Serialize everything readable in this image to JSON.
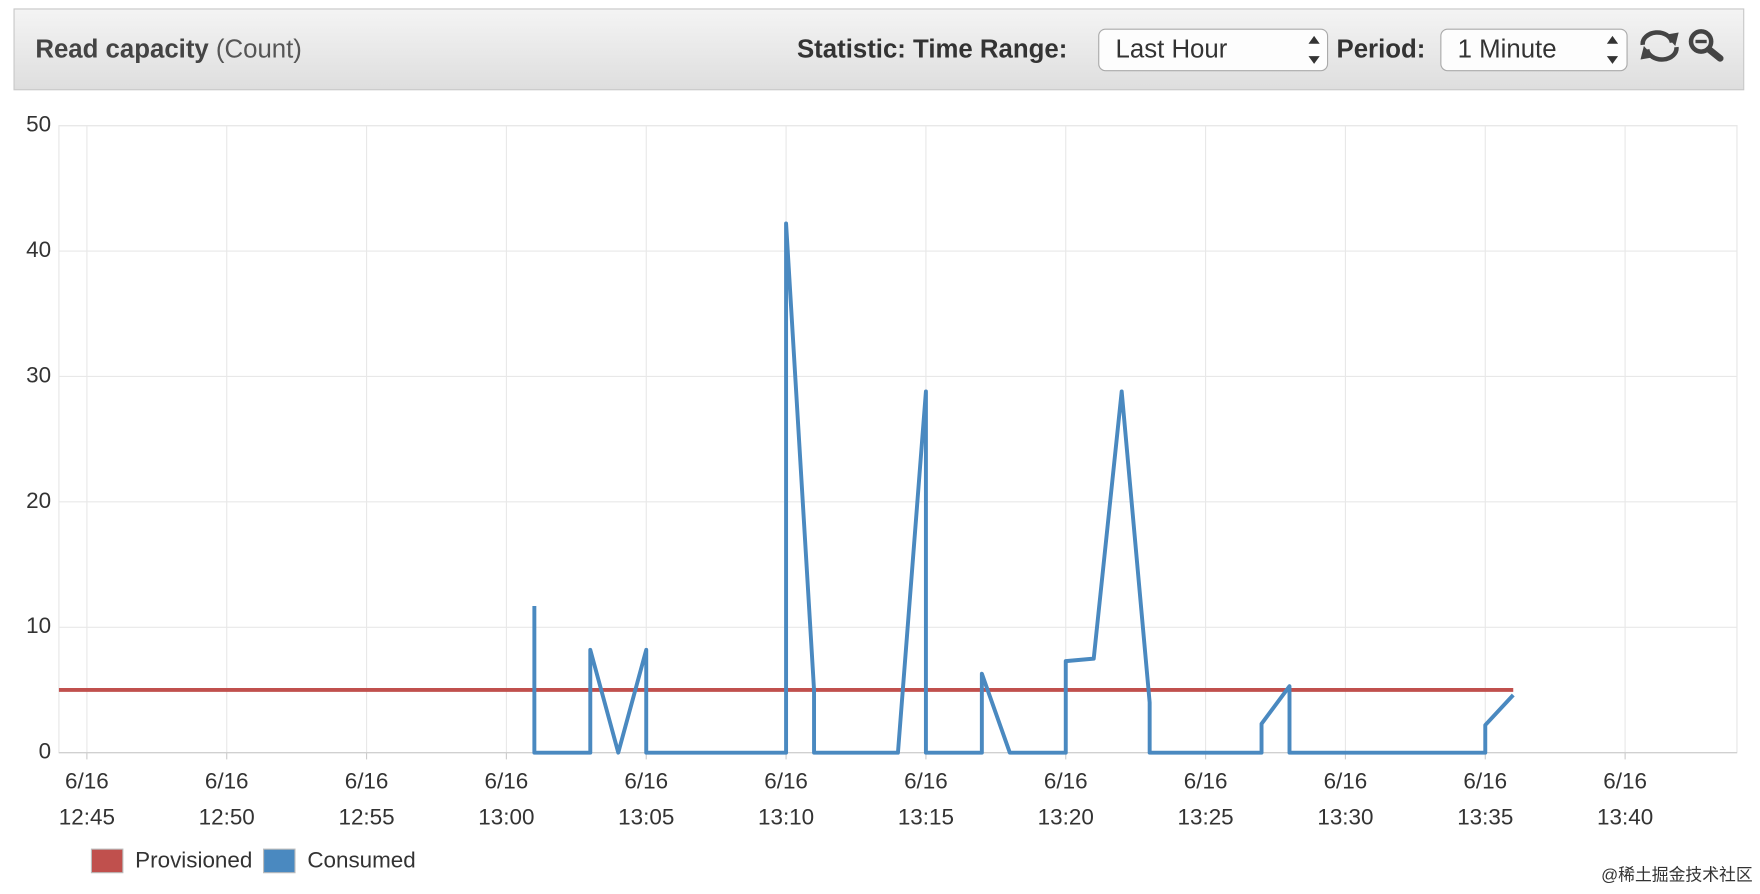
{
  "header": {
    "title": "Read capacity",
    "unit": "(Count)",
    "statistic_label": "Statistic:",
    "time_range_label": "Time Range:",
    "time_range": "Last Hour",
    "period_label": "Period:",
    "period": "1 Minute"
  },
  "chart_data": {
    "type": "line",
    "xlim": [
      "6/16 12:44",
      "6/16 13:44"
    ],
    "xticks": [
      "6/16\n12:45",
      "6/16\n12:50",
      "6/16\n12:55",
      "6/16\n13:00",
      "6/16\n13:05",
      "6/16\n13:10",
      "6/16\n13:15",
      "6/16\n13:20",
      "6/16\n13:25",
      "6/16\n13:30",
      "6/16\n13:35",
      "6/16\n13:40"
    ],
    "ylim": [
      0,
      50
    ],
    "yticks": [
      0,
      10,
      20,
      30,
      40,
      50
    ],
    "grid": true,
    "series": [
      {
        "name": "Provisioned",
        "color": "#c0504d",
        "x": [
          "6/16 12:44",
          "6/16 13:36"
        ],
        "values": [
          5,
          5
        ]
      },
      {
        "name": "Consumed",
        "color": "#4a89c0",
        "x": [
          "6/16 13:01",
          "6/16 13:01",
          "6/16 13:03",
          "6/16 13:03",
          "6/16 13:04",
          "6/16 13:05",
          "6/16 13:05",
          "6/16 13:10",
          "6/16 13:10",
          "6/16 13:11",
          "6/16 13:11",
          "6/16 13:14",
          "6/16 13:15",
          "6/16 13:15",
          "6/16 13:17",
          "6/16 13:17",
          "6/16 13:18",
          "6/16 13:20",
          "6/16 13:20",
          "6/16 13:21",
          "6/16 13:22",
          "6/16 13:23",
          "6/16 13:23",
          "6/16 13:27",
          "6/16 13:27",
          "6/16 13:28",
          "6/16 13:28",
          "6/16 13:35",
          "6/16 13:35",
          "6/16 13:36"
        ],
        "values": [
          11.7,
          0,
          0,
          8.2,
          0,
          8.2,
          0,
          0,
          42.2,
          5,
          0,
          0,
          28.8,
          0,
          0,
          6.3,
          0,
          0,
          7.3,
          7.5,
          28.8,
          4,
          0,
          0,
          2.3,
          5.3,
          0,
          0,
          2.2,
          4.6
        ]
      }
    ]
  },
  "watermark": "@稀土掘金技术社区"
}
